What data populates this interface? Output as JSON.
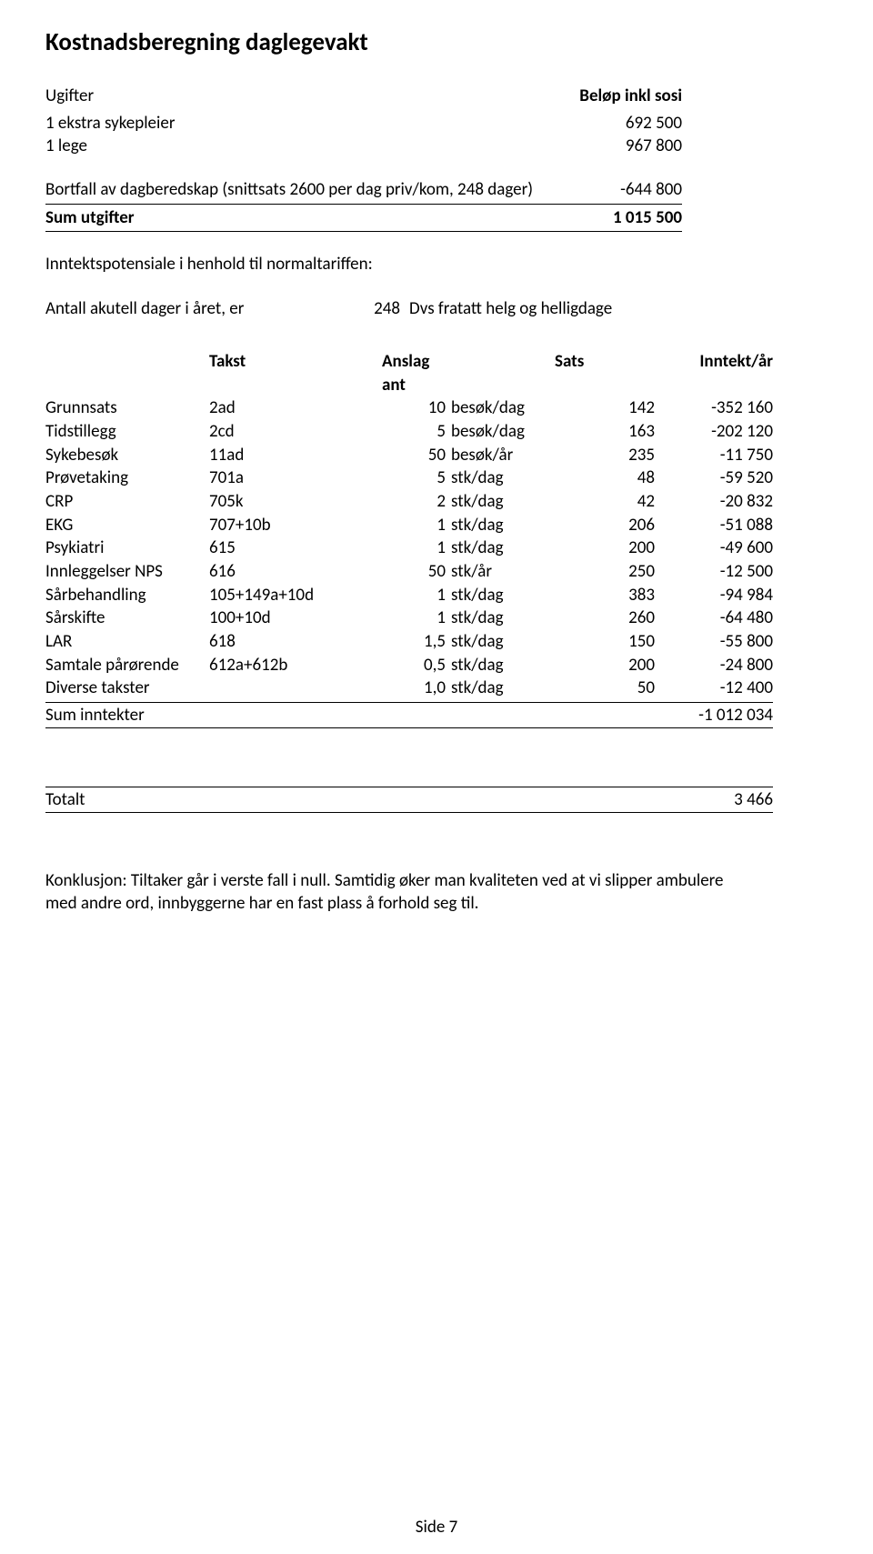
{
  "title": "Kostnadsberegning daglegevakt",
  "ugifter": {
    "heading": "Ugifter",
    "amount_header": "Beløp inkl sosi",
    "rows": [
      {
        "label": "1 ekstra sykepleier",
        "amount": "692 500"
      },
      {
        "label": "1 lege",
        "amount": "967 800"
      }
    ],
    "bortfall": {
      "label": "Bortfall av dagberedskap (snittsats 2600 per dag priv/kom, 248 dager)",
      "amount": "-644 800"
    },
    "sum": {
      "label": "Sum utgifter",
      "amount": "1 015 500"
    }
  },
  "inntekt_intro": {
    "heading": "Inntektspotensiale i henhold til normaltariffen:",
    "antall_label": "Antall akutell dager i året, er",
    "antall_value": "248",
    "antall_note": "Dvs fratatt helg og helligdage"
  },
  "table": {
    "headers": {
      "takst": "Takst",
      "anslag": "Anslag ant",
      "sats": "Sats",
      "inntekt": "Inntekt/år"
    },
    "rows": [
      {
        "name": "Grunnsats",
        "takst": "2ad",
        "ant": "10",
        "unit": "besøk/dag",
        "sats": "142",
        "inntekt": "-352 160"
      },
      {
        "name": "Tidstillegg",
        "takst": "2cd",
        "ant": "5",
        "unit": "besøk/dag",
        "sats": "163",
        "inntekt": "-202 120"
      },
      {
        "name": "Sykebesøk",
        "takst": "11ad",
        "ant": "50",
        "unit": "besøk/år",
        "sats": "235",
        "inntekt": "-11 750"
      },
      {
        "name": "Prøvetaking",
        "takst": "701a",
        "ant": "5",
        "unit": "stk/dag",
        "sats": "48",
        "inntekt": "-59 520"
      },
      {
        "name": "CRP",
        "takst": "705k",
        "ant": "2",
        "unit": "stk/dag",
        "sats": "42",
        "inntekt": "-20 832"
      },
      {
        "name": "EKG",
        "takst": "707+10b",
        "ant": "1",
        "unit": "stk/dag",
        "sats": "206",
        "inntekt": "-51 088"
      },
      {
        "name": "Psykiatri",
        "takst": "615",
        "ant": "1",
        "unit": "stk/dag",
        "sats": "200",
        "inntekt": "-49 600"
      },
      {
        "name": "Innleggelser NPS",
        "takst": "616",
        "ant": "50",
        "unit": "stk/år",
        "sats": "250",
        "inntekt": "-12 500"
      },
      {
        "name": "Sårbehandling",
        "takst": "105+149a+10d",
        "ant": "1",
        "unit": "stk/dag",
        "sats": "383",
        "inntekt": "-94 984"
      },
      {
        "name": "Sårskifte",
        "takst": "100+10d",
        "ant": "1",
        "unit": "stk/dag",
        "sats": "260",
        "inntekt": "-64 480"
      },
      {
        "name": "LAR",
        "takst": "618",
        "ant": "1,5",
        "unit": "stk/dag",
        "sats": "150",
        "inntekt": "-55 800"
      },
      {
        "name": "Samtale pårørende",
        "takst": "612a+612b",
        "ant": "0,5",
        "unit": "stk/dag",
        "sats": "200",
        "inntekt": "-24 800"
      },
      {
        "name": "Diverse takster",
        "takst": "",
        "ant": "1,0",
        "unit": "stk/dag",
        "sats": "50",
        "inntekt": "-12 400"
      }
    ],
    "sum": {
      "label": "Sum inntekter",
      "amount": "-1 012 034"
    }
  },
  "totalt": {
    "label": "Totalt",
    "amount": "3 466"
  },
  "conclusion": {
    "line1": "Konklusjon: Tiltaker går i verste fall i null. Samtidig øker man kvaliteten ved at vi slipper ambulere",
    "line2": "med andre ord, innbyggerne har en fast plass å forhold seg til."
  },
  "footer": "Side 7"
}
